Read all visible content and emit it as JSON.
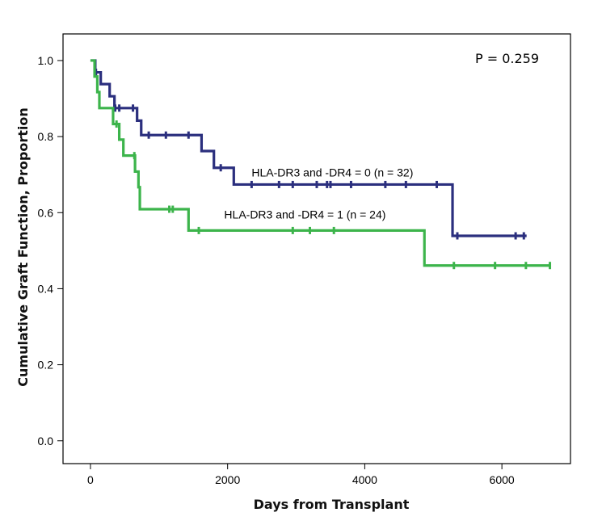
{
  "chart_data": {
    "type": "line",
    "subtype": "kaplan-meier",
    "xlabel": "Days from Transplant",
    "ylabel": "Cumulative Graft Function, Proportion",
    "xlim": [
      -400,
      7000
    ],
    "ylim": [
      -0.06,
      1.07
    ],
    "xticks": [
      0,
      2000,
      4000,
      6000
    ],
    "xtick_labels": [
      "0",
      "2000",
      "4000",
      "6000"
    ],
    "yticks": [
      0.0,
      0.2,
      0.4,
      0.6,
      0.8,
      1.0
    ],
    "ytick_labels": [
      "0.0",
      "0.2",
      "0.4",
      "0.6",
      "0.8",
      "1.0"
    ],
    "grid": false,
    "pvalue_label": "P = 0.259",
    "series": [
      {
        "name": "HLA-DR3 and -DR4 = 0 (n = 32)",
        "label_anchor": [
          2350,
          0.695
        ],
        "color": "#2b2f7e",
        "steps": [
          [
            0,
            1.0
          ],
          [
            70,
            0.969
          ],
          [
            150,
            0.938
          ],
          [
            280,
            0.906
          ],
          [
            350,
            0.875
          ],
          [
            680,
            0.842
          ],
          [
            740,
            0.804
          ],
          [
            1620,
            0.762
          ],
          [
            1800,
            0.718
          ],
          [
            2090,
            0.674
          ],
          [
            5280,
            0.539
          ],
          [
            6360,
            0.539
          ]
        ],
        "censored": [
          [
            80,
            0.969
          ],
          [
            360,
            0.875
          ],
          [
            420,
            0.875
          ],
          [
            620,
            0.875
          ],
          [
            850,
            0.804
          ],
          [
            1100,
            0.804
          ],
          [
            1430,
            0.804
          ],
          [
            1900,
            0.718
          ],
          [
            2350,
            0.674
          ],
          [
            2750,
            0.674
          ],
          [
            2950,
            0.674
          ],
          [
            3300,
            0.674
          ],
          [
            3450,
            0.674
          ],
          [
            3500,
            0.674
          ],
          [
            3800,
            0.674
          ],
          [
            4300,
            0.674
          ],
          [
            4600,
            0.674
          ],
          [
            5050,
            0.674
          ],
          [
            5350,
            0.539
          ],
          [
            6200,
            0.539
          ],
          [
            6320,
            0.539
          ]
        ]
      },
      {
        "name": "HLA-DR3 and -DR4 = 1 (n = 24)",
        "label_anchor": [
          1950,
          0.585
        ],
        "color": "#3cb44b",
        "steps": [
          [
            0,
            1.0
          ],
          [
            60,
            0.958
          ],
          [
            100,
            0.917
          ],
          [
            130,
            0.875
          ],
          [
            330,
            0.833
          ],
          [
            420,
            0.792
          ],
          [
            480,
            0.75
          ],
          [
            650,
            0.708
          ],
          [
            700,
            0.667
          ],
          [
            720,
            0.609
          ],
          [
            1430,
            0.553
          ],
          [
            4870,
            0.461
          ],
          [
            6700,
            0.461
          ]
        ],
        "censored": [
          [
            380,
            0.833
          ],
          [
            640,
            0.75
          ],
          [
            1150,
            0.609
          ],
          [
            1200,
            0.609
          ],
          [
            1580,
            0.553
          ],
          [
            2950,
            0.553
          ],
          [
            3200,
            0.553
          ],
          [
            3550,
            0.553
          ],
          [
            5300,
            0.461
          ],
          [
            5900,
            0.461
          ],
          [
            6350,
            0.461
          ],
          [
            6700,
            0.461
          ]
        ]
      }
    ]
  }
}
